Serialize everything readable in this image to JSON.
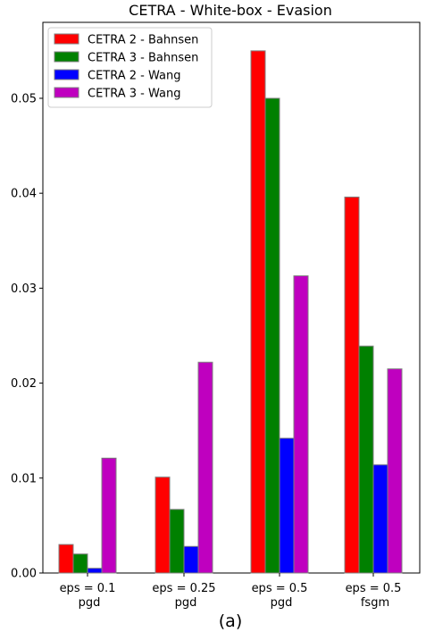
{
  "chart_data": {
    "type": "bar",
    "title": "CETRA - White-box - Evasion",
    "caption": "(a)",
    "xlabel": "",
    "ylabel": "",
    "categories": [
      [
        "eps = 0.1",
        "pgd"
      ],
      [
        "eps = 0.25",
        "pgd"
      ],
      [
        "eps = 0.5",
        "pgd"
      ],
      [
        "eps = 0.5",
        "fsgm"
      ]
    ],
    "series": [
      {
        "name": "CETRA 2 - Bahnsen",
        "color": "#ff0000",
        "values": [
          0.003,
          0.0101,
          0.055,
          0.0396
        ]
      },
      {
        "name": "CETRA 3 - Bahnsen",
        "color": "#008000",
        "values": [
          0.002,
          0.0067,
          0.05,
          0.0239
        ]
      },
      {
        "name": "CETRA 2 - Wang",
        "color": "#0000ff",
        "values": [
          0.0005,
          0.0028,
          0.0142,
          0.0114
        ]
      },
      {
        "name": "CETRA 3 - Wang",
        "color": "#bf00bf",
        "values": [
          0.0121,
          0.0222,
          0.0313,
          0.0215
        ]
      }
    ],
    "ylim": [
      0,
      0.058
    ],
    "yticks": [
      "0.00",
      "0.01",
      "0.02",
      "0.03",
      "0.04",
      "0.05"
    ],
    "grid": false,
    "legend_position": "top-left",
    "bar_edge_color": "#808080"
  }
}
